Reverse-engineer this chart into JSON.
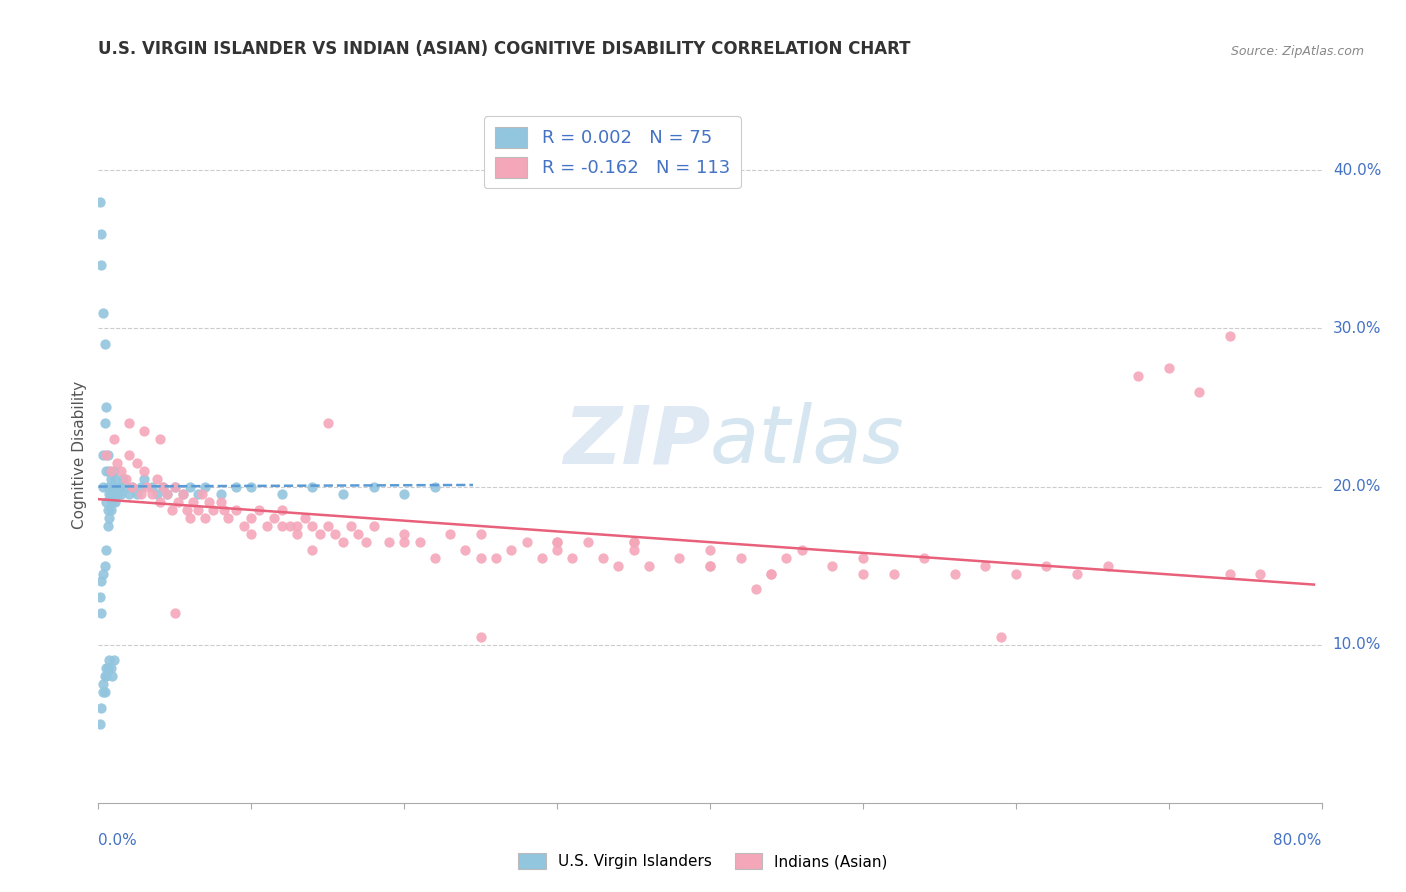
{
  "title": "U.S. VIRGIN ISLANDER VS INDIAN (ASIAN) COGNITIVE DISABILITY CORRELATION CHART",
  "source": "Source: ZipAtlas.com",
  "ylabel": "Cognitive Disability",
  "right_yticks": [
    "40.0%",
    "30.0%",
    "20.0%",
    "10.0%"
  ],
  "right_ytick_vals": [
    0.4,
    0.3,
    0.2,
    0.1
  ],
  "legend1_r": "R = 0.002",
  "legend1_n": "N = 75",
  "legend2_r": "R = -0.162",
  "legend2_n": "N = 113",
  "blue_color": "#92c5de",
  "pink_color": "#f4a7b9",
  "blue_line_color": "#5b9bd5",
  "pink_line_color": "#e8607a",
  "watermark": "ZIPatlas",
  "xlim": [
    0.0,
    0.8
  ],
  "ylim": [
    0.0,
    0.44
  ],
  "blue_line_x": [
    0.0,
    0.245
  ],
  "blue_line_y": [
    0.2,
    0.201
  ],
  "pink_line_x": [
    0.0,
    0.795
  ],
  "pink_line_y": [
    0.192,
    0.138
  ],
  "blue_scatter_x": [
    0.001,
    0.001,
    0.002,
    0.002,
    0.002,
    0.003,
    0.003,
    0.003,
    0.003,
    0.004,
    0.004,
    0.004,
    0.005,
    0.005,
    0.005,
    0.005,
    0.006,
    0.006,
    0.006,
    0.007,
    0.007,
    0.007,
    0.008,
    0.008,
    0.008,
    0.009,
    0.009,
    0.01,
    0.01,
    0.011,
    0.011,
    0.012,
    0.013,
    0.014,
    0.015,
    0.016,
    0.018,
    0.02,
    0.022,
    0.025,
    0.028,
    0.03,
    0.035,
    0.038,
    0.042,
    0.045,
    0.05,
    0.055,
    0.06,
    0.065,
    0.07,
    0.08,
    0.09,
    0.1,
    0.12,
    0.14,
    0.16,
    0.18,
    0.2,
    0.22,
    0.001,
    0.002,
    0.003,
    0.004,
    0.005,
    0.006,
    0.007,
    0.008,
    0.009,
    0.01,
    0.004,
    0.005,
    0.002,
    0.003,
    0.006
  ],
  "blue_scatter_y": [
    0.38,
    0.05,
    0.36,
    0.34,
    0.06,
    0.31,
    0.07,
    0.22,
    0.2,
    0.29,
    0.08,
    0.24,
    0.25,
    0.085,
    0.21,
    0.19,
    0.22,
    0.2,
    0.185,
    0.21,
    0.195,
    0.18,
    0.205,
    0.195,
    0.185,
    0.2,
    0.19,
    0.21,
    0.195,
    0.205,
    0.19,
    0.2,
    0.195,
    0.2,
    0.195,
    0.205,
    0.2,
    0.195,
    0.2,
    0.195,
    0.2,
    0.205,
    0.2,
    0.195,
    0.2,
    0.195,
    0.2,
    0.195,
    0.2,
    0.195,
    0.2,
    0.195,
    0.2,
    0.2,
    0.195,
    0.2,
    0.195,
    0.2,
    0.195,
    0.2,
    0.13,
    0.12,
    0.075,
    0.07,
    0.08,
    0.085,
    0.09,
    0.085,
    0.08,
    0.09,
    0.15,
    0.16,
    0.14,
    0.145,
    0.175
  ],
  "pink_scatter_x": [
    0.005,
    0.008,
    0.01,
    0.012,
    0.015,
    0.018,
    0.02,
    0.022,
    0.025,
    0.028,
    0.03,
    0.032,
    0.035,
    0.038,
    0.04,
    0.042,
    0.045,
    0.048,
    0.05,
    0.052,
    0.055,
    0.058,
    0.06,
    0.062,
    0.065,
    0.068,
    0.07,
    0.072,
    0.075,
    0.08,
    0.082,
    0.085,
    0.09,
    0.095,
    0.1,
    0.105,
    0.11,
    0.115,
    0.12,
    0.125,
    0.13,
    0.135,
    0.14,
    0.145,
    0.15,
    0.155,
    0.16,
    0.165,
    0.17,
    0.175,
    0.18,
    0.19,
    0.2,
    0.21,
    0.22,
    0.23,
    0.24,
    0.25,
    0.26,
    0.27,
    0.28,
    0.29,
    0.3,
    0.31,
    0.32,
    0.33,
    0.34,
    0.35,
    0.36,
    0.38,
    0.4,
    0.42,
    0.44,
    0.46,
    0.48,
    0.5,
    0.52,
    0.54,
    0.56,
    0.58,
    0.6,
    0.62,
    0.64,
    0.66,
    0.68,
    0.7,
    0.72,
    0.74,
    0.74,
    0.76,
    0.02,
    0.03,
    0.04,
    0.05,
    0.25,
    0.3,
    0.35,
    0.4,
    0.45,
    0.5,
    0.4,
    0.35,
    0.3,
    0.25,
    0.2,
    0.15,
    0.1,
    0.12,
    0.13,
    0.14,
    0.43,
    0.44,
    0.59
  ],
  "pink_scatter_y": [
    0.22,
    0.21,
    0.23,
    0.215,
    0.21,
    0.205,
    0.22,
    0.2,
    0.215,
    0.195,
    0.21,
    0.2,
    0.195,
    0.205,
    0.19,
    0.2,
    0.195,
    0.185,
    0.2,
    0.19,
    0.195,
    0.185,
    0.18,
    0.19,
    0.185,
    0.195,
    0.18,
    0.19,
    0.185,
    0.19,
    0.185,
    0.18,
    0.185,
    0.175,
    0.18,
    0.185,
    0.175,
    0.18,
    0.185,
    0.175,
    0.175,
    0.18,
    0.175,
    0.17,
    0.175,
    0.17,
    0.165,
    0.175,
    0.17,
    0.165,
    0.175,
    0.165,
    0.17,
    0.165,
    0.155,
    0.17,
    0.16,
    0.17,
    0.155,
    0.16,
    0.165,
    0.155,
    0.165,
    0.155,
    0.165,
    0.155,
    0.15,
    0.16,
    0.15,
    0.155,
    0.15,
    0.155,
    0.145,
    0.16,
    0.15,
    0.155,
    0.145,
    0.155,
    0.145,
    0.15,
    0.145,
    0.15,
    0.145,
    0.15,
    0.27,
    0.275,
    0.26,
    0.145,
    0.295,
    0.145,
    0.24,
    0.235,
    0.23,
    0.12,
    0.105,
    0.16,
    0.165,
    0.15,
    0.155,
    0.145,
    0.16,
    0.165,
    0.165,
    0.155,
    0.165,
    0.24,
    0.17,
    0.175,
    0.17,
    0.16,
    0.135,
    0.145,
    0.105
  ]
}
